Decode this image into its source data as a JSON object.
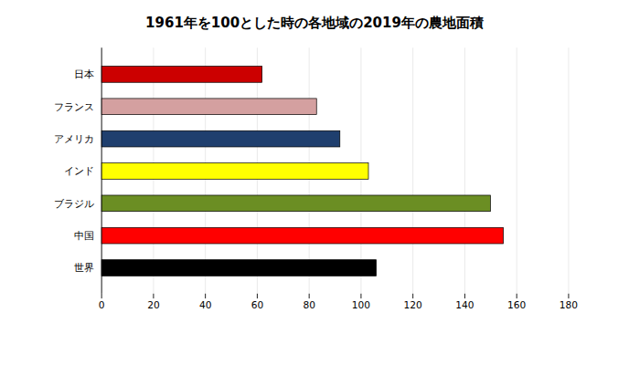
{
  "chart_data": {
    "type": "bar",
    "orientation": "horizontal",
    "title": "1961年を100とした時の各地域の2019年の農地面積",
    "categories": [
      "世界",
      "中国",
      "ブラジル",
      "インド",
      "アメリカ",
      "フランス",
      "日本"
    ],
    "values": [
      106,
      155,
      150,
      103,
      92,
      83,
      62
    ],
    "colors": [
      "#000000",
      "#ff0000",
      "#6b8e23",
      "#ffff00",
      "#1f3f6e",
      "#d4a0a0",
      "#cc0000"
    ],
    "xlim": [
      0,
      180
    ],
    "xticks": [
      0,
      20,
      40,
      60,
      80,
      100,
      120,
      140,
      160,
      180
    ],
    "grid": true
  }
}
